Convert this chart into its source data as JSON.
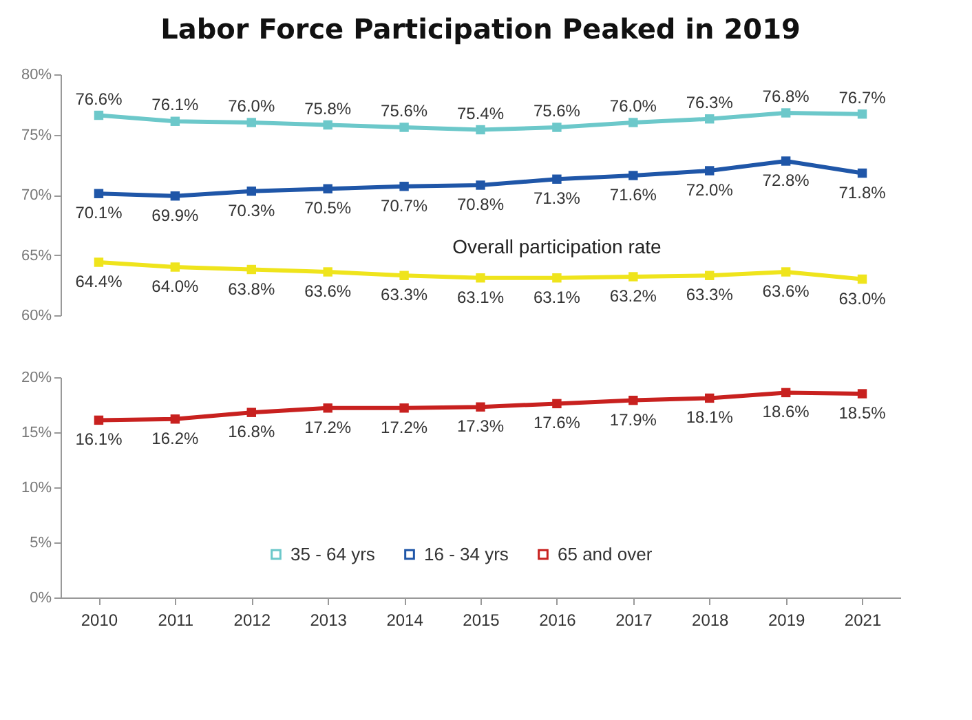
{
  "chart_data": [
    {
      "type": "line",
      "title": "Labor Force Participation Peaked in 2019",
      "categories": [
        "2010",
        "2011",
        "2012",
        "2013",
        "2014",
        "2015",
        "2016",
        "2017",
        "2018",
        "2019",
        "2021"
      ],
      "ylim": [
        60,
        80
      ],
      "yticks": [
        {
          "value": 60,
          "label": "60%"
        },
        {
          "value": 65,
          "label": "65%"
        },
        {
          "value": 70,
          "label": "70%"
        },
        {
          "value": 75,
          "label": "75%"
        },
        {
          "value": 80,
          "label": "80%"
        }
      ],
      "tick_labels": "y",
      "marker": "square",
      "grid": false,
      "series": [
        {
          "name": "35 - 64 yrs",
          "color": "#6cc8ca",
          "values": [
            76.6,
            76.1,
            76.0,
            75.8,
            75.6,
            75.4,
            75.6,
            76.0,
            76.3,
            76.8,
            76.7
          ],
          "value_labels": [
            "76.6%",
            "76.1%",
            "76.0%",
            "75.8%",
            "75.6%",
            "75.4%",
            "75.6%",
            "76.0%",
            "76.3%",
            "76.8%",
            "76.7%"
          ]
        },
        {
          "name": "16 - 34 yrs",
          "color": "#1f56a8",
          "values": [
            70.1,
            69.9,
            70.3,
            70.5,
            70.7,
            70.8,
            71.3,
            71.6,
            72.0,
            72.8,
            71.8
          ],
          "value_labels": [
            "70.1%",
            "69.9%",
            "70.3%",
            "70.5%",
            "70.7%",
            "70.8%",
            "71.3%",
            "71.6%",
            "72.0%",
            "72.8%",
            "71.8%"
          ]
        },
        {
          "color": "#efe41c",
          "values": [
            64.4,
            64.0,
            63.8,
            63.6,
            63.3,
            63.1,
            63.1,
            63.2,
            63.3,
            63.6,
            63.0
          ],
          "value_labels": [
            "64.4%",
            "64.0%",
            "63.8%",
            "63.6%",
            "63.3%",
            "63.1%",
            "63.1%",
            "63.2%",
            "63.3%",
            "63.6%",
            "63.0%"
          ]
        }
      ],
      "legend": "bottom",
      "annotations": [
        "Overall participation rate"
      ]
    },
    {
      "type": "line",
      "categories": [
        "2010",
        "2011",
        "2012",
        "2013",
        "2014",
        "2015",
        "2016",
        "2017",
        "2018",
        "2019",
        "2021"
      ],
      "ylim": [
        0,
        20
      ],
      "yticks": [
        {
          "value": 0,
          "label": "0%"
        },
        {
          "value": 5,
          "label": "5%"
        },
        {
          "value": 10,
          "label": "10%"
        },
        {
          "value": 15,
          "label": "15%"
        },
        {
          "value": 20,
          "label": "20%"
        }
      ],
      "marker": "square",
      "grid": false,
      "legend": "bottom",
      "series": [
        {
          "name": "65 and over",
          "color": "#c8211f",
          "values": [
            16.1,
            16.2,
            16.8,
            17.2,
            17.2,
            17.3,
            17.6,
            17.9,
            18.1,
            18.6,
            18.5
          ],
          "value_labels": [
            "16.1%",
            "16.2%",
            "16.8%",
            "17.2%",
            "17.2%",
            "17.3%",
            "17.6%",
            "17.9%",
            "18.1%",
            "18.6%",
            "18.5%"
          ]
        }
      ]
    }
  ]
}
